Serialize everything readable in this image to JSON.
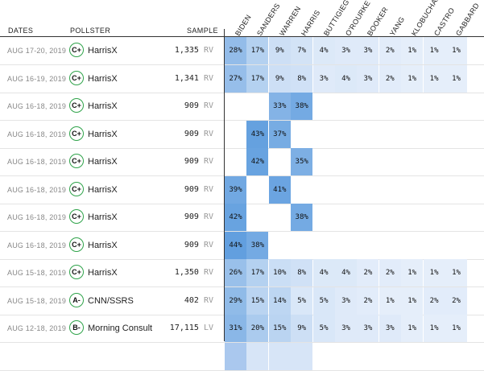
{
  "headers": {
    "dates": "DATES",
    "pollster": "POLLSTER",
    "sample": "SAMPLE"
  },
  "candidates": [
    "BIDEN",
    "SANDERS",
    "WARREN",
    "HARRIS",
    "BUTTIGIEG",
    "O'ROURKE",
    "BOOKER",
    "YANG",
    "KLOBUCHAR",
    "CASTRO",
    "GABBARD"
  ],
  "rows": [
    {
      "dates": "AUG 17-20, 2019",
      "grade": "C+",
      "pollster": "HarrisX",
      "sample": "1,335",
      "unit": "RV",
      "values": [
        "28%",
        "17%",
        "9%",
        "7%",
        "4%",
        "3%",
        "3%",
        "2%",
        "1%",
        "1%",
        "1%"
      ]
    },
    {
      "dates": "AUG 16-19, 2019",
      "grade": "C+",
      "pollster": "HarrisX",
      "sample": "1,341",
      "unit": "RV",
      "values": [
        "27%",
        "17%",
        "9%",
        "8%",
        "3%",
        "4%",
        "3%",
        "2%",
        "1%",
        "1%",
        "1%"
      ]
    },
    {
      "dates": "AUG 16-18, 2019",
      "grade": "C+",
      "pollster": "HarrisX",
      "sample": "909",
      "unit": "RV",
      "values": [
        "",
        "",
        "33%",
        "38%",
        "",
        "",
        "",
        "",
        "",
        "",
        ""
      ]
    },
    {
      "dates": "AUG 16-18, 2019",
      "grade": "C+",
      "pollster": "HarrisX",
      "sample": "909",
      "unit": "RV",
      "values": [
        "",
        "43%",
        "37%",
        "",
        "",
        "",
        "",
        "",
        "",
        "",
        ""
      ]
    },
    {
      "dates": "AUG 16-18, 2019",
      "grade": "C+",
      "pollster": "HarrisX",
      "sample": "909",
      "unit": "RV",
      "values": [
        "",
        "42%",
        "",
        "35%",
        "",
        "",
        "",
        "",
        "",
        "",
        ""
      ]
    },
    {
      "dates": "AUG 16-18, 2019",
      "grade": "C+",
      "pollster": "HarrisX",
      "sample": "909",
      "unit": "RV",
      "values": [
        "39%",
        "",
        "41%",
        "",
        "",
        "",
        "",
        "",
        "",
        "",
        ""
      ]
    },
    {
      "dates": "AUG 16-18, 2019",
      "grade": "C+",
      "pollster": "HarrisX",
      "sample": "909",
      "unit": "RV",
      "values": [
        "42%",
        "",
        "",
        "38%",
        "",
        "",
        "",
        "",
        "",
        "",
        ""
      ]
    },
    {
      "dates": "AUG 16-18, 2019",
      "grade": "C+",
      "pollster": "HarrisX",
      "sample": "909",
      "unit": "RV",
      "values": [
        "44%",
        "38%",
        "",
        "",
        "",
        "",
        "",
        "",
        "",
        "",
        ""
      ]
    },
    {
      "dates": "AUG 15-18, 2019",
      "grade": "C+",
      "pollster": "HarrisX",
      "sample": "1,350",
      "unit": "RV",
      "values": [
        "26%",
        "17%",
        "10%",
        "8%",
        "4%",
        "4%",
        "2%",
        "2%",
        "1%",
        "1%",
        "1%"
      ]
    },
    {
      "dates": "AUG 15-18, 2019",
      "grade": "A-",
      "pollster": "CNN/SSRS",
      "sample": "402",
      "unit": "RV",
      "values": [
        "29%",
        "15%",
        "14%",
        "5%",
        "5%",
        "3%",
        "2%",
        "1%",
        "1%",
        "2%",
        "2%"
      ]
    },
    {
      "dates": "AUG 12-18, 2019",
      "grade": "B-",
      "pollster": "Morning Consult",
      "sample": "17,115",
      "unit": "LV",
      "values": [
        "31%",
        "20%",
        "15%",
        "9%",
        "5%",
        "3%",
        "3%",
        "3%",
        "1%",
        "1%",
        "1%"
      ]
    },
    {
      "dates": "",
      "grade": "",
      "pollster": "",
      "sample": "",
      "unit": "",
      "values": [
        "",
        "",
        "",
        "",
        "",
        "",
        "",
        "",
        "",
        "",
        ""
      ]
    }
  ],
  "colors": {
    "grade_ring": "#2fa34a",
    "cell_base": "#e8f0fb",
    "cell_strong": "#6aa3e0"
  }
}
